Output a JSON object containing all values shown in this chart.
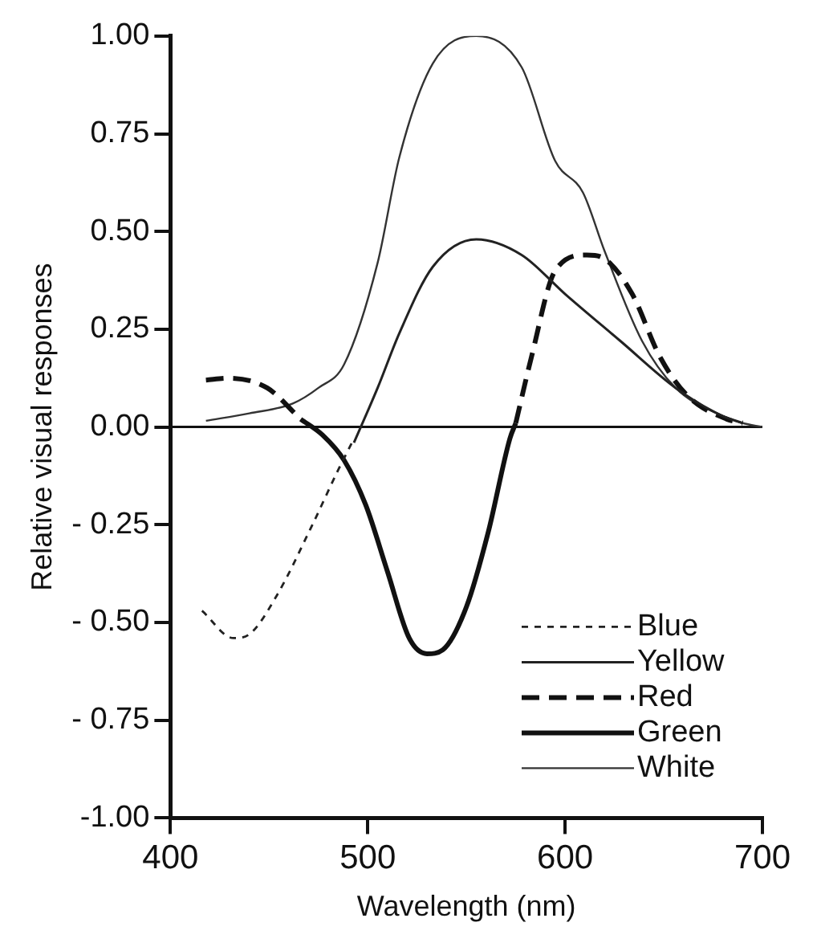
{
  "chart_data": {
    "type": "line",
    "xlabel": "Wavelength (nm)",
    "ylabel": "Relative visual responses",
    "xlim": [
      400,
      700
    ],
    "xticks": [
      400,
      500,
      600,
      700
    ],
    "ylim": [
      -1,
      1
    ],
    "yticks": [
      {
        "value": 1,
        "label": "1.00"
      },
      {
        "value": 0.75,
        "label": "0.75"
      },
      {
        "value": 0.5,
        "label": "0.50"
      },
      {
        "value": 0.25,
        "label": "0.25"
      },
      {
        "value": 0,
        "label": "0.00"
      },
      {
        "value": -0.25,
        "label": "- 0.25"
      },
      {
        "value": -0.5,
        "label": "- 0.50"
      },
      {
        "value": -0.75,
        "label": "- 0.75"
      },
      {
        "value": -1,
        "label": "-1.00"
      }
    ],
    "grid": false,
    "legend": "bottom right",
    "marker": "none",
    "ref_lines": [
      {
        "axis": "y",
        "value": 0,
        "color": "#111111"
      }
    ],
    "series": [
      {
        "name": "Blue",
        "color": "#222222",
        "line_style": "dotted",
        "x": [
          416,
          432,
          440,
          454,
          471,
          485,
          493
        ],
        "values": [
          -0.47,
          -0.54,
          -0.53,
          -0.43,
          -0.26,
          -0.11,
          -0.03
        ]
      },
      {
        "name": "Yellow",
        "color": "#222222",
        "line_style": "solid",
        "x": [
          493,
          505,
          516,
          533,
          555,
          578,
          600,
          628,
          656,
          679,
          690
        ],
        "values": [
          -0.04,
          0.1,
          0.24,
          0.41,
          0.48,
          0.44,
          0.34,
          0.22,
          0.1,
          0.03,
          0.01
        ]
      },
      {
        "name": "Red",
        "color": "#111111",
        "line_style": "dashed",
        "x": [
          418,
          429,
          449,
          466,
          520,
          575,
          583,
          595,
          611,
          620,
          634,
          648,
          662,
          682,
          690
        ],
        "values": [
          0.12,
          0.125,
          0.1,
          0.02,
          null,
          0.01,
          0.18,
          0.4,
          0.44,
          0.43,
          0.34,
          0.18,
          0.08,
          0.02,
          0.01
        ]
      },
      {
        "name": "Green",
        "color": "#111111",
        "line_style": "solid",
        "x": [
          466,
          477,
          488,
          499,
          510,
          521,
          530,
          538,
          550,
          561,
          572,
          575
        ],
        "values": [
          0.02,
          -0.02,
          -0.085,
          -0.2,
          -0.37,
          -0.54,
          -0.58,
          -0.57,
          -0.46,
          -0.27,
          -0.03,
          0.01
        ]
      },
      {
        "name": "White",
        "color": "#333333",
        "line_style": "solid",
        "x": [
          418,
          440,
          462,
          475,
          488,
          505,
          516,
          533,
          555,
          578,
          595,
          609,
          620,
          639,
          656,
          679,
          690,
          700
        ],
        "values": [
          0.016,
          0.035,
          0.06,
          0.1,
          0.16,
          0.42,
          0.69,
          0.93,
          1.0,
          0.92,
          0.68,
          0.6,
          0.45,
          0.22,
          0.1,
          0.03,
          0.01,
          0
        ]
      }
    ]
  }
}
